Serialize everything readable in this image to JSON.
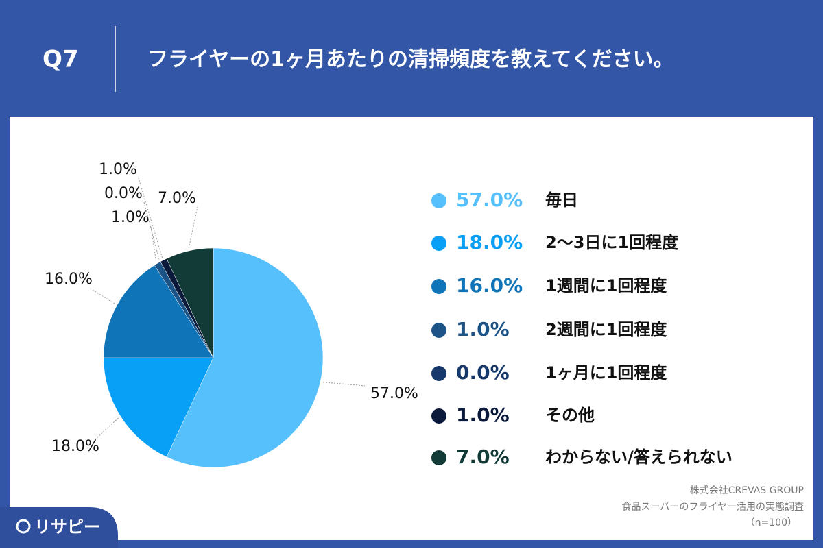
{
  "header": {
    "number": "Q7"
  },
  "chart_data": {
    "type": "pie",
    "title": "フライヤーの1ヶ月あたりの清掃頻度を教えてください。",
    "categories": [
      "毎日",
      "2〜3日に1回程度",
      "1週間に1回程度",
      "2週間に1回程度",
      "1ヶ月に1回程度",
      "その他",
      "わからない/答えられない"
    ],
    "values": [
      57,
      18,
      16,
      1,
      0,
      1,
      7
    ],
    "value_labels": [
      "57.0%",
      "18.0%",
      "16.0%",
      "1.0%",
      "0.0%",
      "1.0%",
      "7.0%"
    ],
    "colors": [
      "#56c0fc",
      "#08a0f6",
      "#0f74b8",
      "#1d5488",
      "#16386a",
      "#0b1a3a",
      "#123a36"
    ]
  },
  "source": [
    "株式会社CREVAS GROUP",
    "食品スーパーのフライヤー活用の実態調査",
    "（n=100）"
  ],
  "logo": "リサピー"
}
